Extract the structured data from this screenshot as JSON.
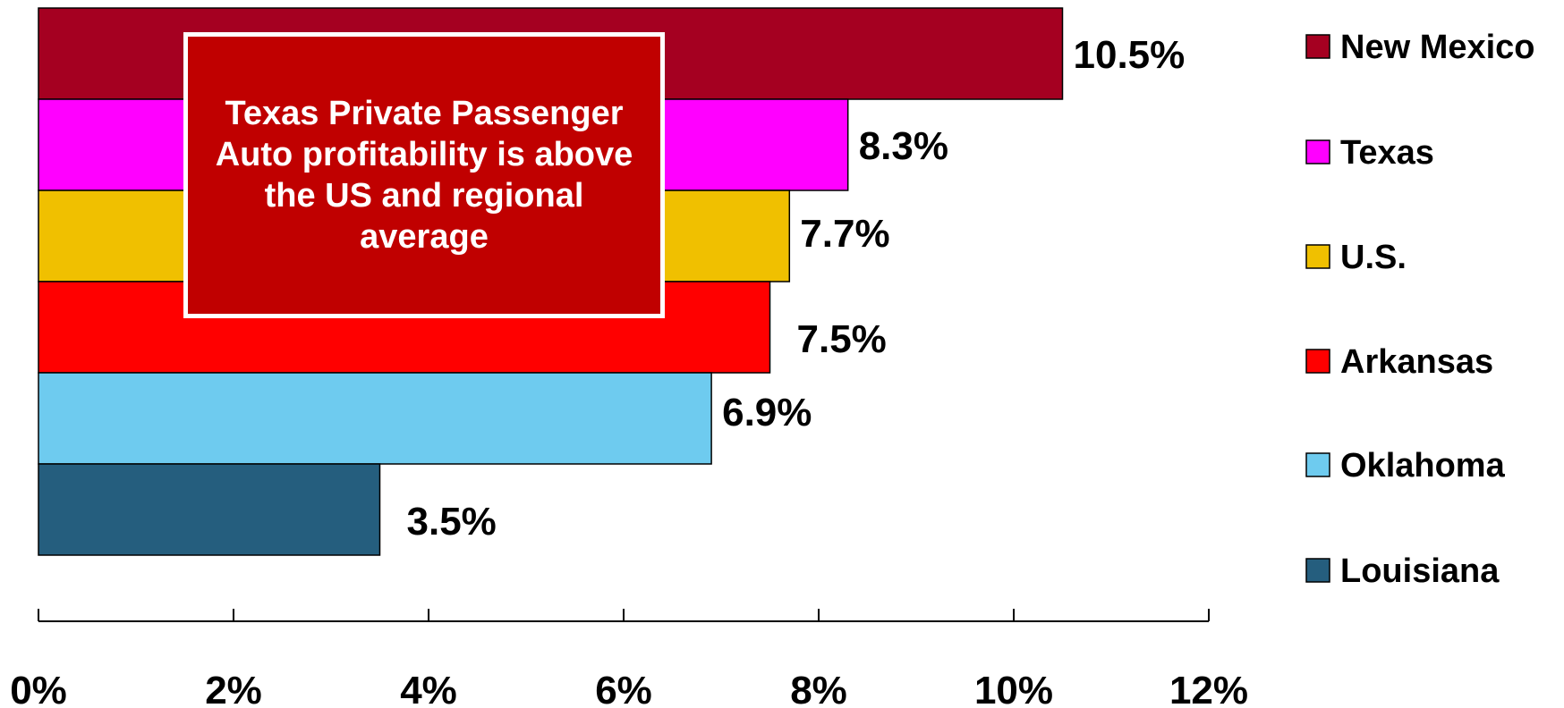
{
  "chart_data": {
    "type": "bar",
    "orientation": "horizontal",
    "categories": [
      "New Mexico",
      "Texas",
      "U.S.",
      "Arkansas",
      "Oklahoma",
      "Louisiana"
    ],
    "values": [
      10.5,
      8.3,
      7.7,
      7.5,
      6.9,
      3.5
    ],
    "value_labels": [
      "10.5%",
      "8.3%",
      "7.7%",
      "7.5%",
      "6.9%",
      "3.5%"
    ],
    "colors": [
      "#a50021",
      "#ff00ff",
      "#f0c000",
      "#ff0000",
      "#6ecbef",
      "#255e7e"
    ],
    "xlim": [
      0,
      12
    ],
    "x_ticks": [
      0,
      2,
      4,
      6,
      8,
      10,
      12
    ],
    "x_tick_labels": [
      "0%",
      "2%",
      "4%",
      "6%",
      "8%",
      "10%",
      "12%"
    ],
    "legend_position": "right",
    "grid": false,
    "annotation": "Texas Private Passenger Auto profitability is above the US and regional average"
  }
}
